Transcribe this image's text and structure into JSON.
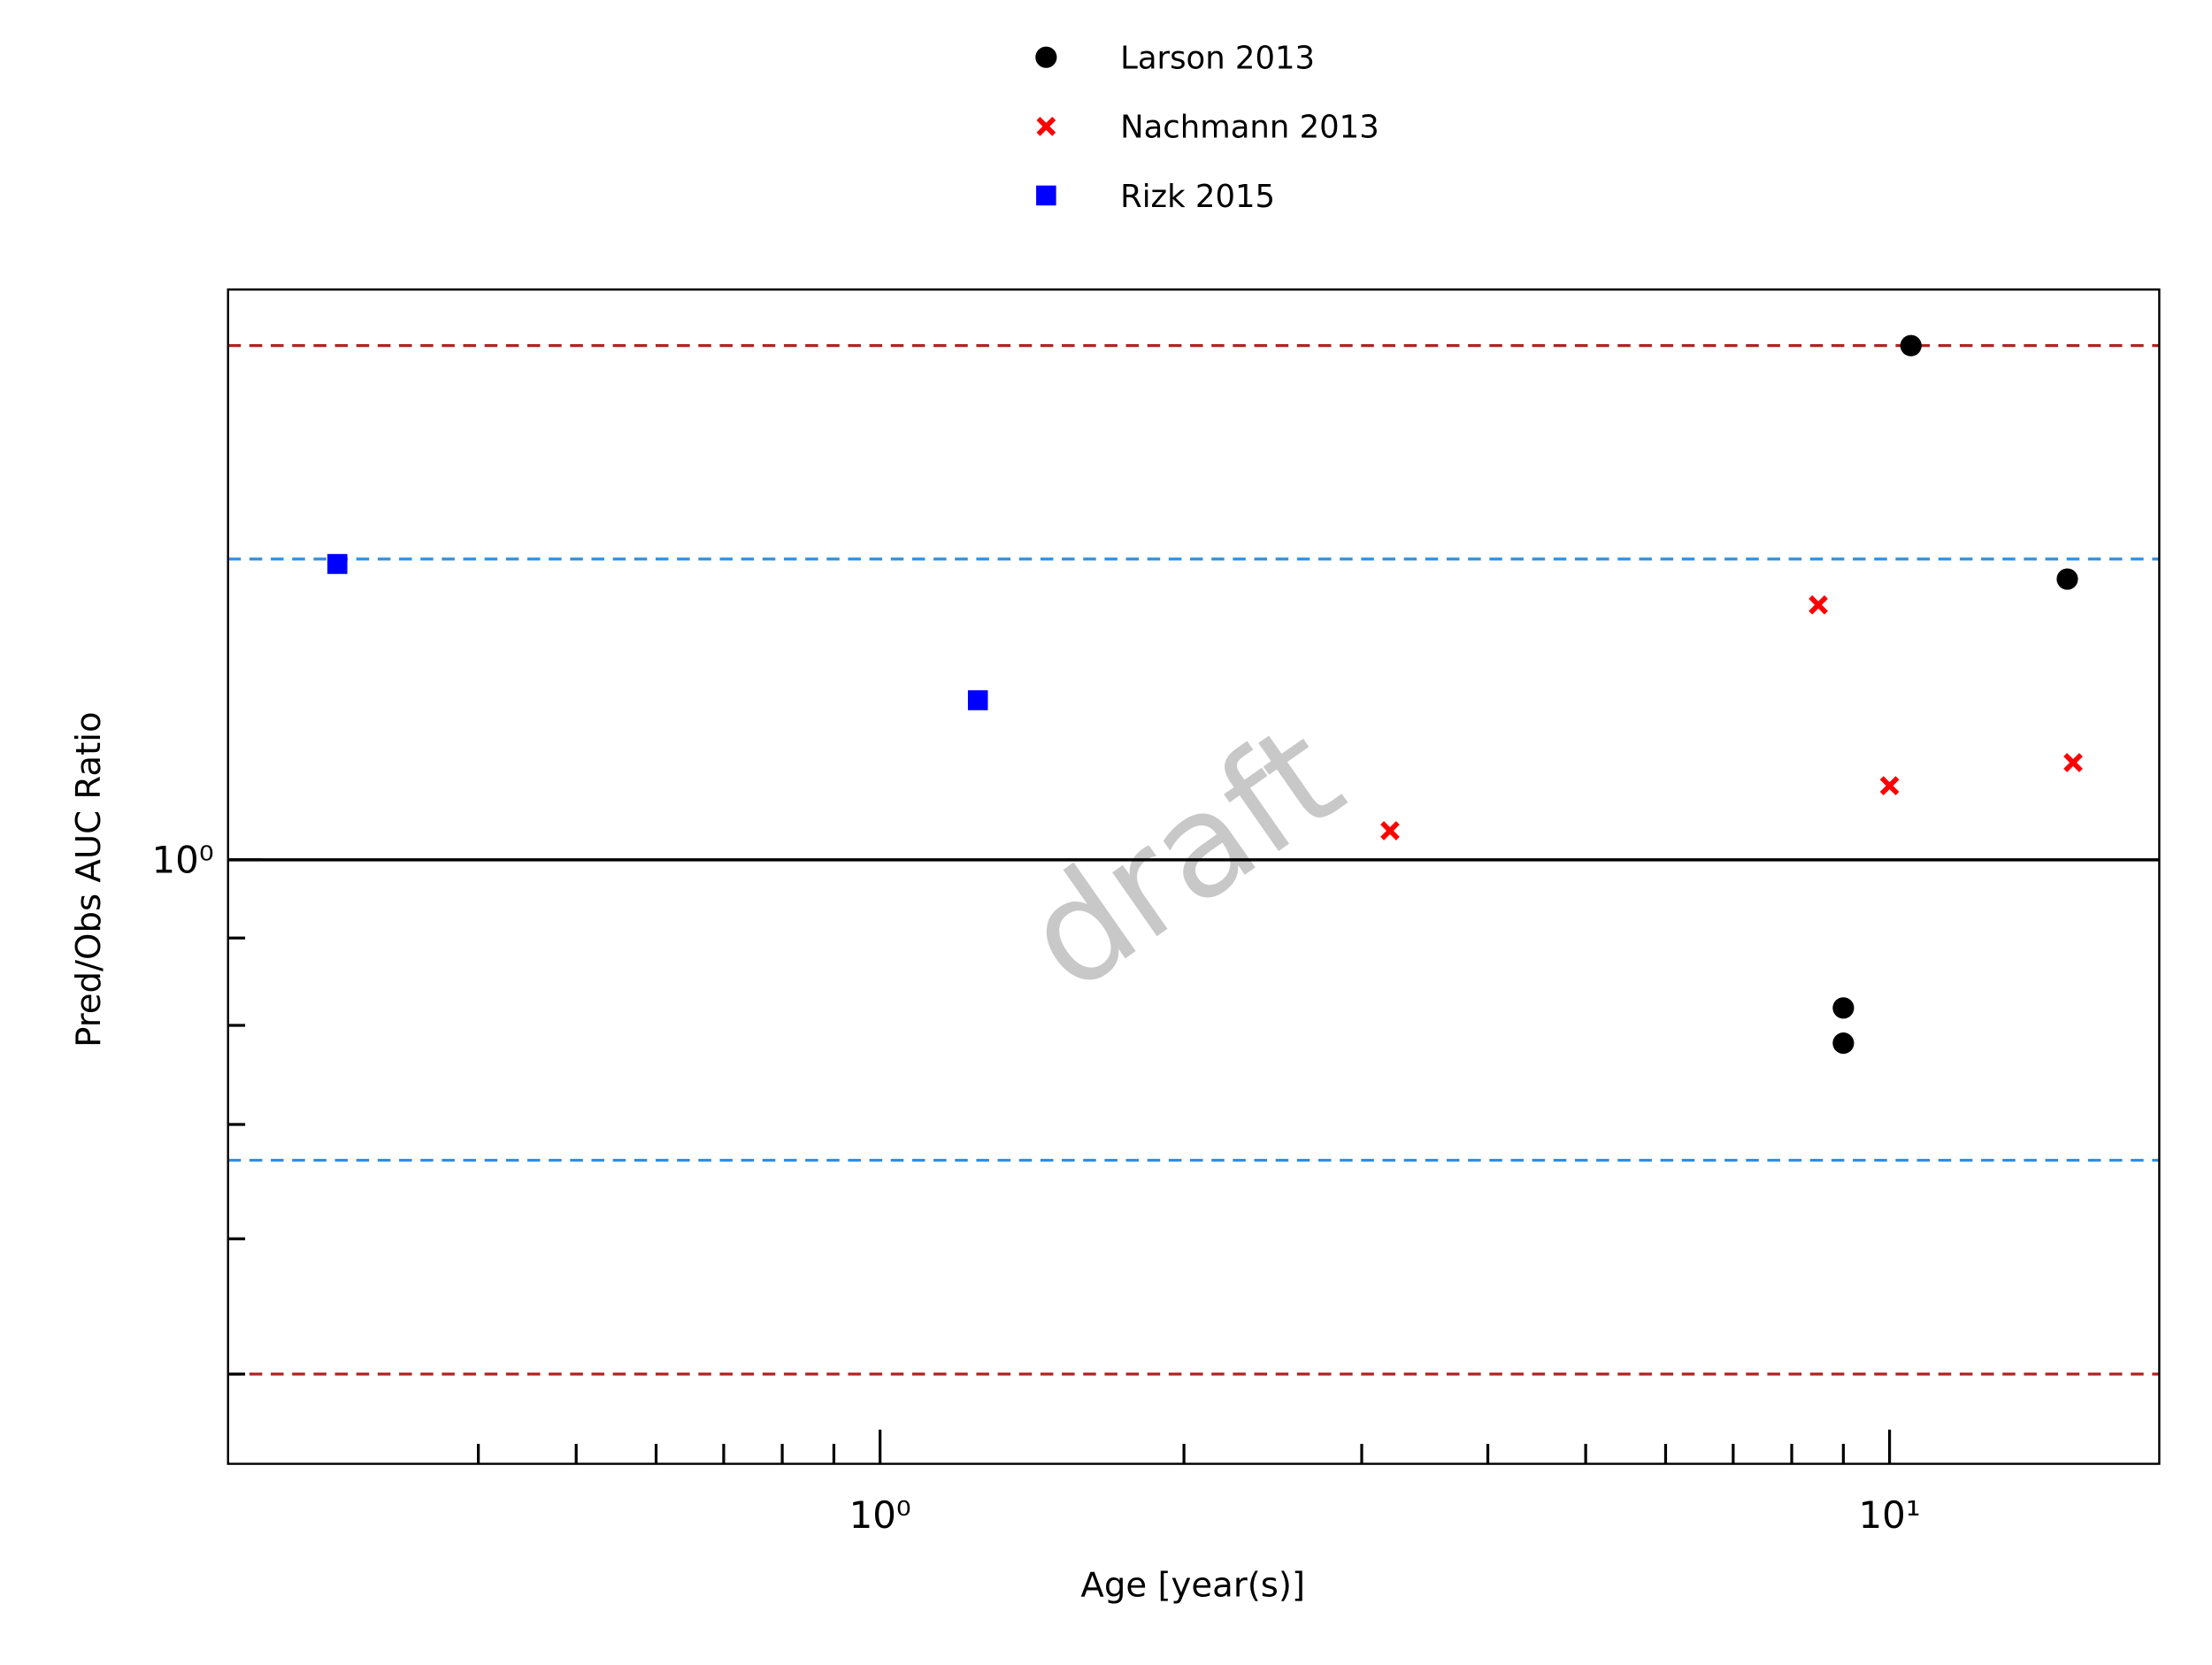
{
  "chart_data": {
    "type": "scatter",
    "xlabel": "Age [year(s)]",
    "ylabel": "Pred/Obs AUC Ratio",
    "watermark": "draft",
    "xscale": "log",
    "yscale": "log",
    "xlim": [
      0.226,
      18.5
    ],
    "ylim": [
      0.443,
      2.157
    ],
    "xticks": [
      {
        "value": 1,
        "label": "10⁰"
      },
      {
        "value": 10,
        "label": "10¹"
      }
    ],
    "xminorticks": [
      0.4,
      0.5,
      0.6,
      0.7,
      0.8,
      0.9,
      2,
      3,
      4,
      5,
      6,
      7,
      8,
      9
    ],
    "yticks": [
      {
        "value": 1,
        "label": "10⁰"
      }
    ],
    "yminorticks": [
      0.5,
      0.6,
      0.7,
      0.8,
      0.9
    ],
    "reference_lines": [
      {
        "value": 1,
        "color": "#000000",
        "style": "solid"
      },
      {
        "value": 1.5,
        "color": "#2e8fe0",
        "style": "dashed"
      },
      {
        "value": 0.667,
        "color": "#2e8fe0",
        "style": "dashed"
      },
      {
        "value": 2,
        "color": "#b22222",
        "style": "dashed"
      },
      {
        "value": 0.5,
        "color": "#b22222",
        "style": "dashed"
      }
    ],
    "legend": "top",
    "series": [
      {
        "name": "Larson 2013",
        "color": "#000000",
        "marker": "circle",
        "x": [
          10.5,
          15.0,
          9.0,
          9.0
        ],
        "values": [
          2.0,
          1.46,
          0.819,
          0.781
        ]
      },
      {
        "name": "Nachmann 2013",
        "color": "#ff0000",
        "marker": "x",
        "x": [
          3.2,
          8.5,
          10.0,
          15.2
        ],
        "values": [
          1.04,
          1.41,
          1.105,
          1.14
        ]
      },
      {
        "name": "Rizk 2015",
        "color": "#0000ff",
        "marker": "square",
        "x": [
          0.29,
          1.25
        ],
        "values": [
          1.49,
          1.24
        ]
      }
    ]
  }
}
